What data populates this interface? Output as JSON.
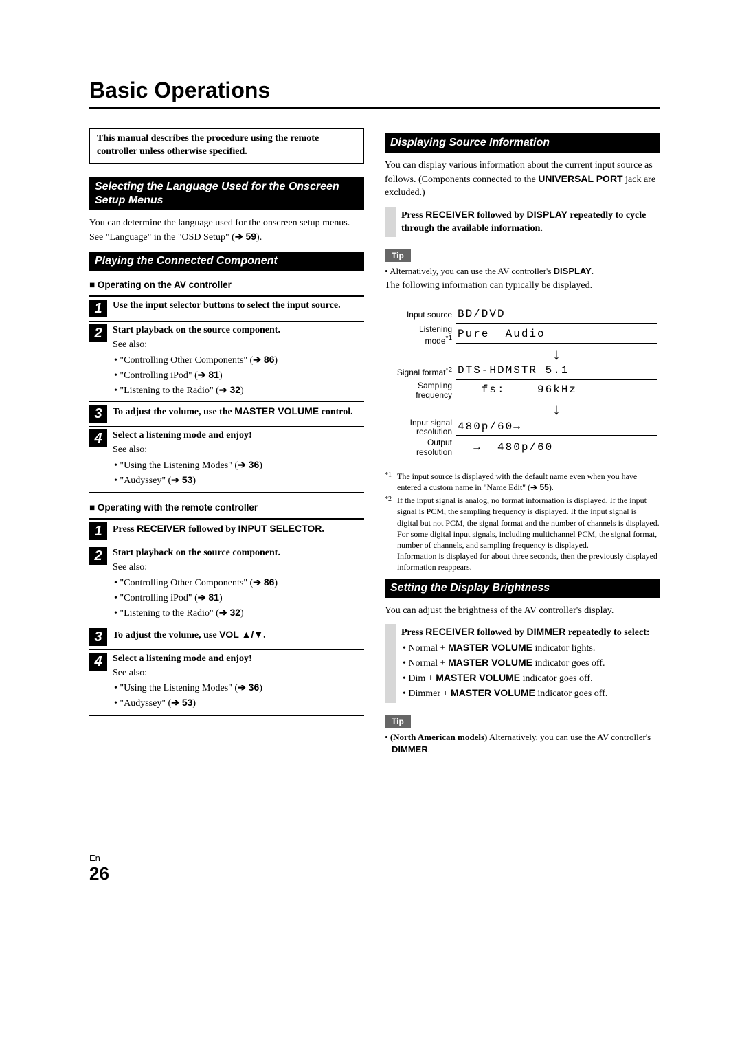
{
  "title": "Basic Operations",
  "intro": "This manual describes the procedure using the remote controller unless otherwise specified.",
  "left": {
    "sec1": {
      "h": "Selecting the Language Used for the Onscreen Setup Menus",
      "p_parts": [
        "You can determine the language used for the onscreen setup menus. See \"Language\" in the \"OSD Setup\" (",
        " 59",
        ")."
      ]
    },
    "sec2": {
      "h": "Playing the Connected Component",
      "sub1": "Operating on the AV controller",
      "steps1": [
        {
          "n": "1",
          "titles": [
            "Use the input selector buttons to select the input source."
          ]
        },
        {
          "n": "2",
          "titles": [
            "Start playback on the source component."
          ],
          "see": "See also:",
          "bullets": [
            {
              "t": "\"Controlling Other Components\" (",
              "ref": " 86",
              "tail": ")"
            },
            {
              "t": "\"Controlling iPod\" (",
              "ref": " 81",
              "tail": ")"
            },
            {
              "t": "\"Listening to the Radio\" (",
              "ref": " 32",
              "tail": ")"
            }
          ]
        },
        {
          "n": "3",
          "titles": [
            "To adjust the volume, use the ",
            "MASTER VOLUME",
            " control."
          ]
        },
        {
          "n": "4",
          "titles": [
            "Select a listening mode and enjoy!"
          ],
          "see": "See also:",
          "bullets": [
            {
              "t": "\"Using the Listening Modes\" (",
              "ref": " 36",
              "tail": ")"
            },
            {
              "t": "\"Audyssey\" (",
              "ref": " 53",
              "tail": ")"
            }
          ]
        }
      ],
      "sub2": "Operating with the remote controller",
      "steps2": [
        {
          "n": "1",
          "titles": [
            "Press ",
            "RECEIVER",
            " followed by ",
            "INPUT SELECTOR",
            "."
          ]
        },
        {
          "n": "2",
          "titles": [
            "Start playback on the source component."
          ],
          "see": "See also:",
          "bullets": [
            {
              "t": "\"Controlling Other Components\" (",
              "ref": " 86",
              "tail": ")"
            },
            {
              "t": "\"Controlling iPod\" (",
              "ref": " 81",
              "tail": ")"
            },
            {
              "t": "\"Listening to the Radio\" (",
              "ref": " 32",
              "tail": ")"
            }
          ]
        },
        {
          "n": "3",
          "titles": [
            "To adjust the volume, use ",
            "VOL ▲/▼",
            "."
          ]
        },
        {
          "n": "4",
          "titles": [
            "Select a listening mode and enjoy!"
          ],
          "see": "See also:",
          "bullets": [
            {
              "t": "\"Using the Listening Modes\" (",
              "ref": " 36",
              "tail": ")"
            },
            {
              "t": "\"Audyssey\" (",
              "ref": " 53",
              "tail": ")"
            }
          ]
        }
      ]
    }
  },
  "right": {
    "sec3": {
      "h": "Displaying Source Information",
      "p1a": "You can display various information about the current input source as follows. (Components connected to the ",
      "p1b": "UNIVERSAL PORT",
      "p1c": " jack are excluded.)",
      "instr_parts": [
        "Press ",
        "RECEIVER",
        " followed by ",
        "DISPLAY",
        " repeatedly to cycle through the available information."
      ],
      "tip_label": "Tip",
      "tip1_a": "Alternatively, you can use the AV controller's ",
      "tip1_b": "DISPLAY",
      "tip1_c": ".",
      "p2": "The following information can typically be displayed.",
      "fig": {
        "labels": {
          "l1": "Input source",
          "l2a": "Listening",
          "l2b": "mode",
          "l3": "Signal format",
          "l4a": "Sampling",
          "l4b": "frequency",
          "l5a": "Input signal",
          "l5b": "resolution",
          "l6a": "Output",
          "l6b": "resolution"
        },
        "vals": {
          "v1": "BD/DVD",
          "v2": "Pure  Audio",
          "v3": "DTS-HDMSTR 5.1",
          "v4": "   fs:    96kHz",
          "v5": "480p/60→",
          "v6": "  →  480p/60"
        },
        "sup1": "*1",
        "sup2": "*2"
      },
      "fn1_mark": "*1",
      "fn1": "The input source is displayed with the default name even when you have entered a custom name in \"Name Edit\" (",
      "fn1_ref": " 55",
      "fn1_tail": ").",
      "fn2_mark": "*2",
      "fn2": "If the input signal is analog, no format information is displayed. If the input signal is PCM, the sampling frequency is displayed. If the input signal is digital but not PCM, the signal format and the number of channels is displayed. For some digital input signals, including multichannel PCM, the signal format, number of channels, and sampling frequency is displayed.",
      "fn2b": "Information is displayed for about three seconds, then the previously displayed information reappears."
    },
    "sec4": {
      "h": "Setting the Display Brightness",
      "p": "You can adjust the brightness of the AV controller's display.",
      "instr_title_parts": [
        "Press ",
        "RECEIVER",
        " followed by ",
        "DIMMER",
        " repeatedly to select:"
      ],
      "instr_items": [
        {
          "a": "Normal + ",
          "b": "MASTER VOLUME",
          "c": " indicator lights."
        },
        {
          "a": "Normal + ",
          "b": "MASTER VOLUME",
          "c": " indicator goes off."
        },
        {
          "a": "Dim + ",
          "b": "MASTER VOLUME",
          "c": " indicator goes off."
        },
        {
          "a": "Dimmer + ",
          "b": "MASTER VOLUME",
          "c": " indicator goes off."
        }
      ],
      "tip_label": "Tip",
      "tip_a": "(North American models)",
      "tip_b": " Alternatively, you can use the AV controller's ",
      "tip_c": "DIMMER",
      "tip_d": "."
    }
  },
  "footer": {
    "lang": "En",
    "page": "26"
  }
}
